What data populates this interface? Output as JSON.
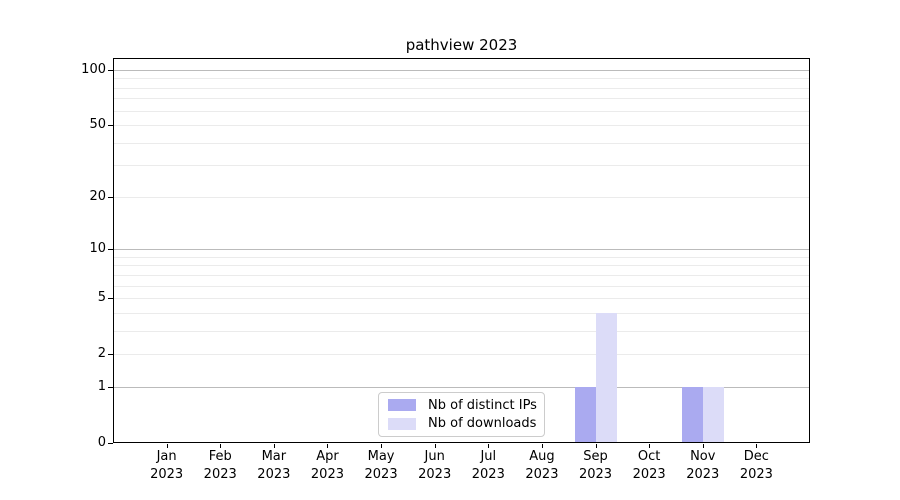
{
  "chart_data": {
    "type": "bar",
    "title": "pathview 2023",
    "categories": [
      "Jan",
      "Feb",
      "Mar",
      "Apr",
      "May",
      "Jun",
      "Jul",
      "Aug",
      "Sep",
      "Oct",
      "Nov",
      "Dec"
    ],
    "year": "2023",
    "series": [
      {
        "name": "Nb of distinct IPs",
        "color": "#aaaaf0",
        "values": [
          0,
          0,
          0,
          0,
          0,
          0,
          0,
          0,
          1,
          0,
          1,
          0
        ]
      },
      {
        "name": "Nb of downloads",
        "color": "#dcdcf8",
        "values": [
          0,
          0,
          0,
          0,
          0,
          0,
          0,
          0,
          4,
          0,
          1,
          0
        ]
      }
    ],
    "y_axis": {
      "scale": "log1p",
      "ylim": [
        0,
        116
      ],
      "tick_values": [
        0,
        1,
        2,
        5,
        10,
        20,
        50,
        100
      ],
      "major_gridlines": [
        1,
        10,
        100
      ],
      "minor_gridlines": [
        2,
        3,
        4,
        5,
        6,
        7,
        8,
        9,
        20,
        30,
        40,
        50,
        60,
        70,
        80,
        90
      ]
    },
    "x_axis": {
      "tick_label_format": "month-over-year"
    },
    "legend": {
      "position": "bottom-center",
      "entries": [
        "Nb of distinct IPs",
        "Nb of downloads"
      ]
    },
    "grid": true,
    "colors": {
      "major_grid": "#bbbbbb",
      "minor_grid": "#ebebeb",
      "axis": "#000000",
      "background": "#ffffff",
      "legend_border": "#cccccc"
    }
  }
}
